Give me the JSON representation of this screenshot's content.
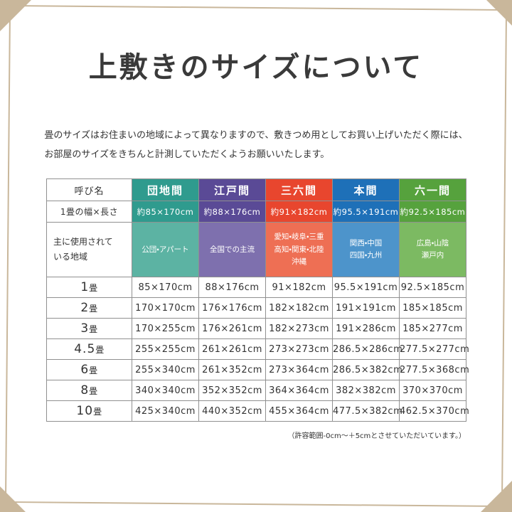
{
  "page": {
    "title": "上敷きのサイズについて",
    "description_lines": [
      "畳のサイズはお住まいの地域によって異なりますので、敷きつめ用としてお買い上げいただく際には、",
      "お部屋のサイズをきちんと計測していただくようお願いいたします。"
    ],
    "footnote": "（許容範囲-0cm〜＋5cmとさせていただいています。）",
    "frame_color": "#c9b79b"
  },
  "table": {
    "corner_label": "呼び名",
    "row_label_size": "1畳の幅×長さ",
    "row_label_region_lines": [
      "主に使用されて",
      "いる地域"
    ],
    "columns": [
      {
        "name": "団地間",
        "color": "#2f9b8e",
        "light_color": "#5cb3a3",
        "size": "約85×170cm",
        "region_lines": [
          "公団・アパート"
        ]
      },
      {
        "name": "江戸間",
        "color": "#5a4a96",
        "light_color": "#7e70ae",
        "size": "約88×176cm",
        "region_lines": [
          "全国での主流"
        ]
      },
      {
        "name": "三六間",
        "color": "#e8462e",
        "light_color": "#ee6f54",
        "size": "約91×182cm",
        "region_lines": [
          "愛知・岐阜・三重",
          "高知・関東・北陸",
          "沖縄"
        ]
      },
      {
        "name": "本間",
        "color": "#1e70b8",
        "light_color": "#4d94cb",
        "size": "約95.5×191cm",
        "region_lines": [
          "関西・中国",
          "四国・九州"
        ]
      },
      {
        "name": "六一間",
        "color": "#56a23d",
        "light_color": "#7cba62",
        "size": "約92.5×185cm",
        "region_lines": [
          "広島・山陰",
          "瀬戸内"
        ]
      }
    ],
    "rows": [
      {
        "label_num": "1",
        "label_unit": "畳",
        "values": [
          "85×170cm",
          "88×176cm",
          "91×182cm",
          "95.5×191cm",
          "92.5×185cm"
        ]
      },
      {
        "label_num": "2",
        "label_unit": "畳",
        "values": [
          "170×170cm",
          "176×176cm",
          "182×182cm",
          "191×191cm",
          "185×185cm"
        ]
      },
      {
        "label_num": "3",
        "label_unit": "畳",
        "values": [
          "170×255cm",
          "176×261cm",
          "182×273cm",
          "191×286cm",
          "185×277cm"
        ]
      },
      {
        "label_num": "4.5",
        "label_unit": "畳",
        "values": [
          "255×255cm",
          "261×261cm",
          "273×273cm",
          "286.5×286cm",
          "277.5×277cm"
        ]
      },
      {
        "label_num": "6",
        "label_unit": "畳",
        "values": [
          "255×340cm",
          "261×352cm",
          "273×364cm",
          "286.5×382cm",
          "277.5×368cm"
        ]
      },
      {
        "label_num": "8",
        "label_unit": "畳",
        "values": [
          "340×340cm",
          "352×352cm",
          "364×364cm",
          "382×382cm",
          "370×370cm"
        ]
      },
      {
        "label_num": "10",
        "label_unit": "畳",
        "values": [
          "425×340cm",
          "440×352cm",
          "455×364cm",
          "477.5×382cm",
          "462.5×370cm"
        ]
      }
    ]
  }
}
